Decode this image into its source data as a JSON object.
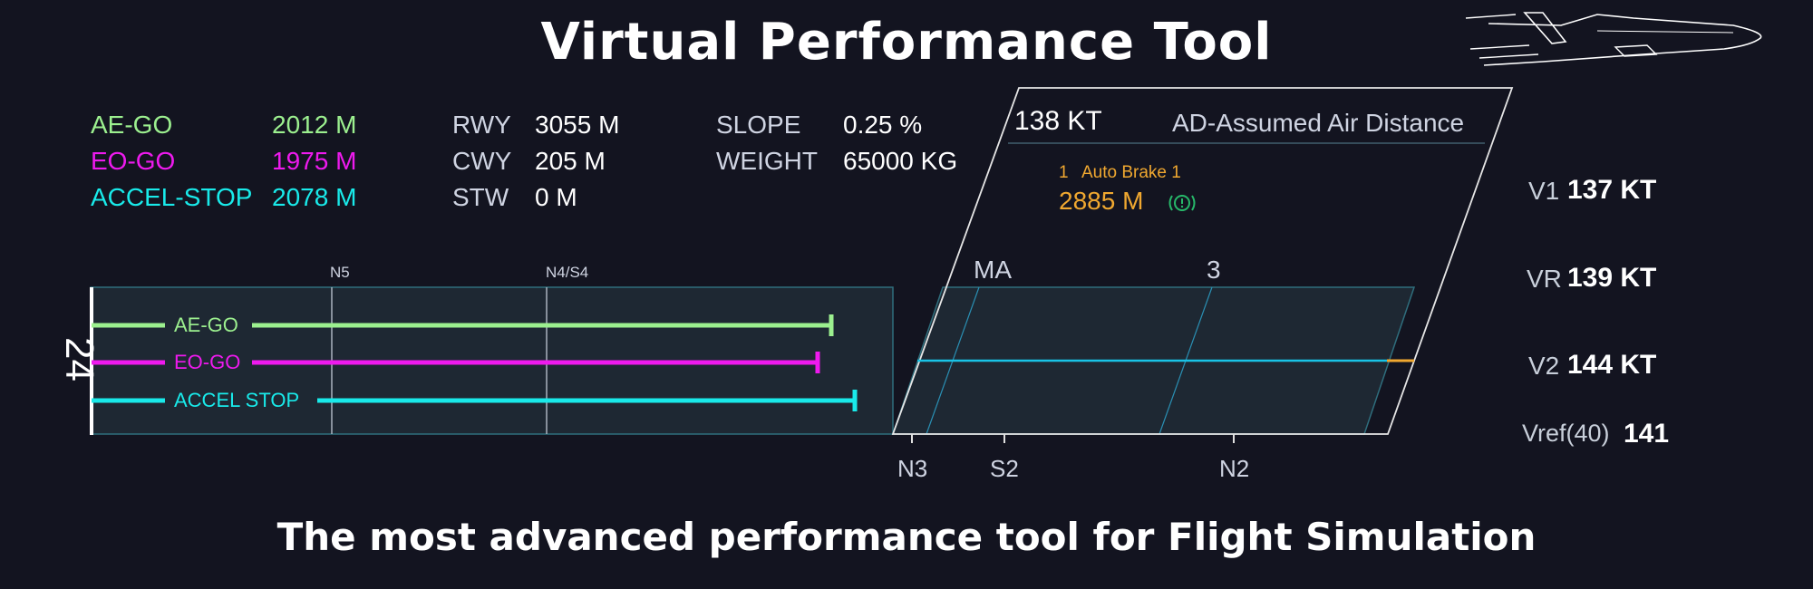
{
  "title": "Virtual Performance Tool",
  "subtitle": "The most advanced performance tool for Flight Simulation",
  "colors": {
    "background": "#131420",
    "ae_go": "#9cf08f",
    "eo_go": "#ee1aee",
    "accel_stop": "#19eaea",
    "runway_fill": "#1e2833",
    "runway_line": "#2f6e7d",
    "autobrake": "#f0a830",
    "autobrake_icon": "#27b86a"
  },
  "distances": [
    {
      "label": "AE-GO",
      "value": "2012 M"
    },
    {
      "label": "EO-GO",
      "value": "1975 M"
    },
    {
      "label": "ACCEL-STOP",
      "value": "2078 M"
    }
  ],
  "runway_info": [
    {
      "label": "RWY",
      "value": "3055 M"
    },
    {
      "label": "CWY",
      "value": "205 M"
    },
    {
      "label": "STW",
      "value": "0 M"
    }
  ],
  "conditions": [
    {
      "label": "SLOPE",
      "value": "0.25 %"
    },
    {
      "label": "WEIGHT",
      "value": "65000 KG"
    }
  ],
  "air_distance": {
    "speed": "138 KT",
    "label": "AD-Assumed Air Distance"
  },
  "autobrake": {
    "number": "1",
    "label": "Auto Brake 1",
    "distance": "2885 M",
    "icon": "brake-warning-icon"
  },
  "vspeeds": [
    {
      "name": "V1",
      "value": "137 KT"
    },
    {
      "name": "VR",
      "value": "139 KT"
    },
    {
      "name": "V2",
      "value": "144 KT"
    },
    {
      "name": "Vref(40)",
      "value": "141"
    }
  ],
  "runway": {
    "designator": "24",
    "top_markers": [
      "N5",
      "N4/S4"
    ],
    "top_markers_large": [
      "MA",
      "3"
    ],
    "bottom_markers": [
      "N3",
      "S2",
      "N2"
    ],
    "bars": [
      {
        "label": "AE-GO",
        "color": "ae_go"
      },
      {
        "label": "EO-GO",
        "color": "eo_go"
      },
      {
        "label": "ACCEL STOP",
        "color": "accel_stop"
      }
    ]
  }
}
